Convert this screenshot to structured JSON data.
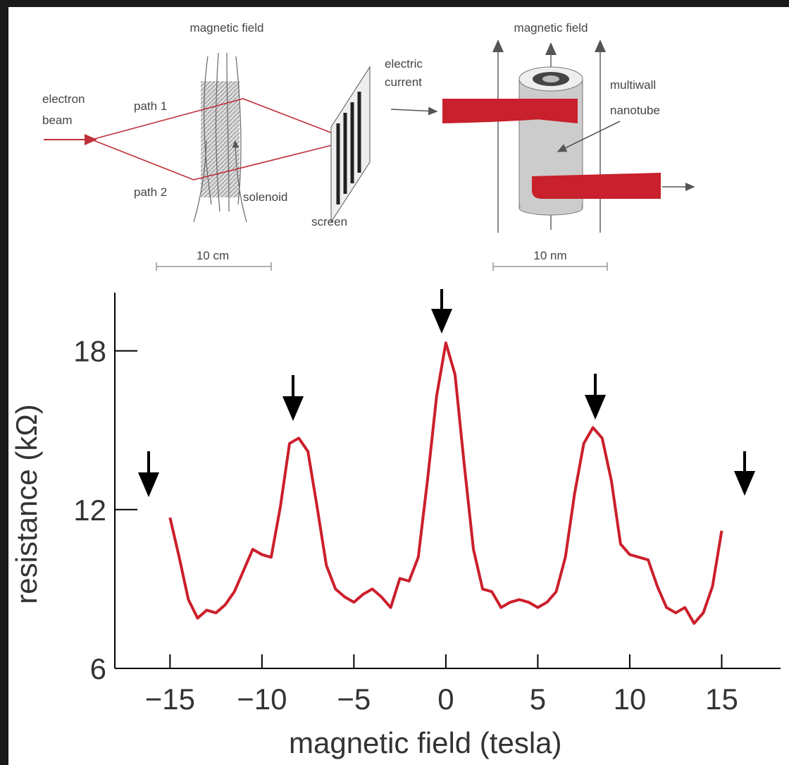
{
  "diagram": {
    "left": {
      "field": "magnetic field",
      "beam": [
        "electron",
        "beam"
      ],
      "path1": "path 1",
      "path2": "path 2",
      "solenoid": "solenoid",
      "screen": "screen",
      "scale": "10 cm"
    },
    "right": {
      "field": "magnetic field",
      "current": [
        "electric",
        "current"
      ],
      "tube": [
        "multiwall",
        "nanotube"
      ],
      "scale": "10 nm"
    }
  },
  "chart_data": {
    "type": "line",
    "color": "#cc1f2b",
    "x_label": "magnetic field (tesla)",
    "y_label": "resistance (kΩ)",
    "x": [
      -15,
      -14.5,
      -14,
      -13.5,
      -13,
      -12.5,
      -12,
      -11.5,
      -11,
      -10.5,
      -10,
      -9.5,
      -9,
      -8.5,
      -8,
      -7.5,
      -7,
      -6.5,
      -6,
      -5.5,
      -5,
      -4.5,
      -4,
      -3.5,
      -3,
      -2.5,
      -2,
      -1.5,
      -1,
      -0.5,
      0,
      0.5,
      1,
      1.5,
      2,
      2.5,
      3,
      3.5,
      4,
      4.5,
      5,
      5.5,
      6,
      6.5,
      7,
      7.5,
      8,
      8.5,
      9,
      9.5,
      10,
      10.5,
      11,
      11.5,
      12,
      12.5,
      13,
      13.5,
      14,
      14.5,
      15
    ],
    "values": [
      11.7,
      10.2,
      8.6,
      7.9,
      8.2,
      8.1,
      8.4,
      8.9,
      9.7,
      10.5,
      10.3,
      10.2,
      12.1,
      14.5,
      14.7,
      14.2,
      12.1,
      9.9,
      9.0,
      8.7,
      8.5,
      8.8,
      9.0,
      8.7,
      8.3,
      9.4,
      9.3,
      10.2,
      13.1,
      16.3,
      18.3,
      17.1,
      13.7,
      10.5,
      9.0,
      8.9,
      8.3,
      8.5,
      8.6,
      8.5,
      8.3,
      8.5,
      8.9,
      10.2,
      12.6,
      14.5,
      15.1,
      14.7,
      13.1,
      10.7,
      10.3,
      10.2,
      10.1,
      9.1,
      8.3,
      8.1,
      8.3,
      7.7,
      8.1,
      9.1,
      11.2
    ],
    "xlim": [
      -18,
      18.2
    ],
    "ylim": [
      6,
      20.2
    ],
    "xticks": [
      {
        "value": -15,
        "label": "−15"
      },
      {
        "value": -10,
        "label": "−10"
      },
      {
        "value": -5,
        "label": "−5"
      },
      0,
      5,
      10,
      15
    ],
    "yticks": [
      6,
      12,
      18
    ]
  }
}
